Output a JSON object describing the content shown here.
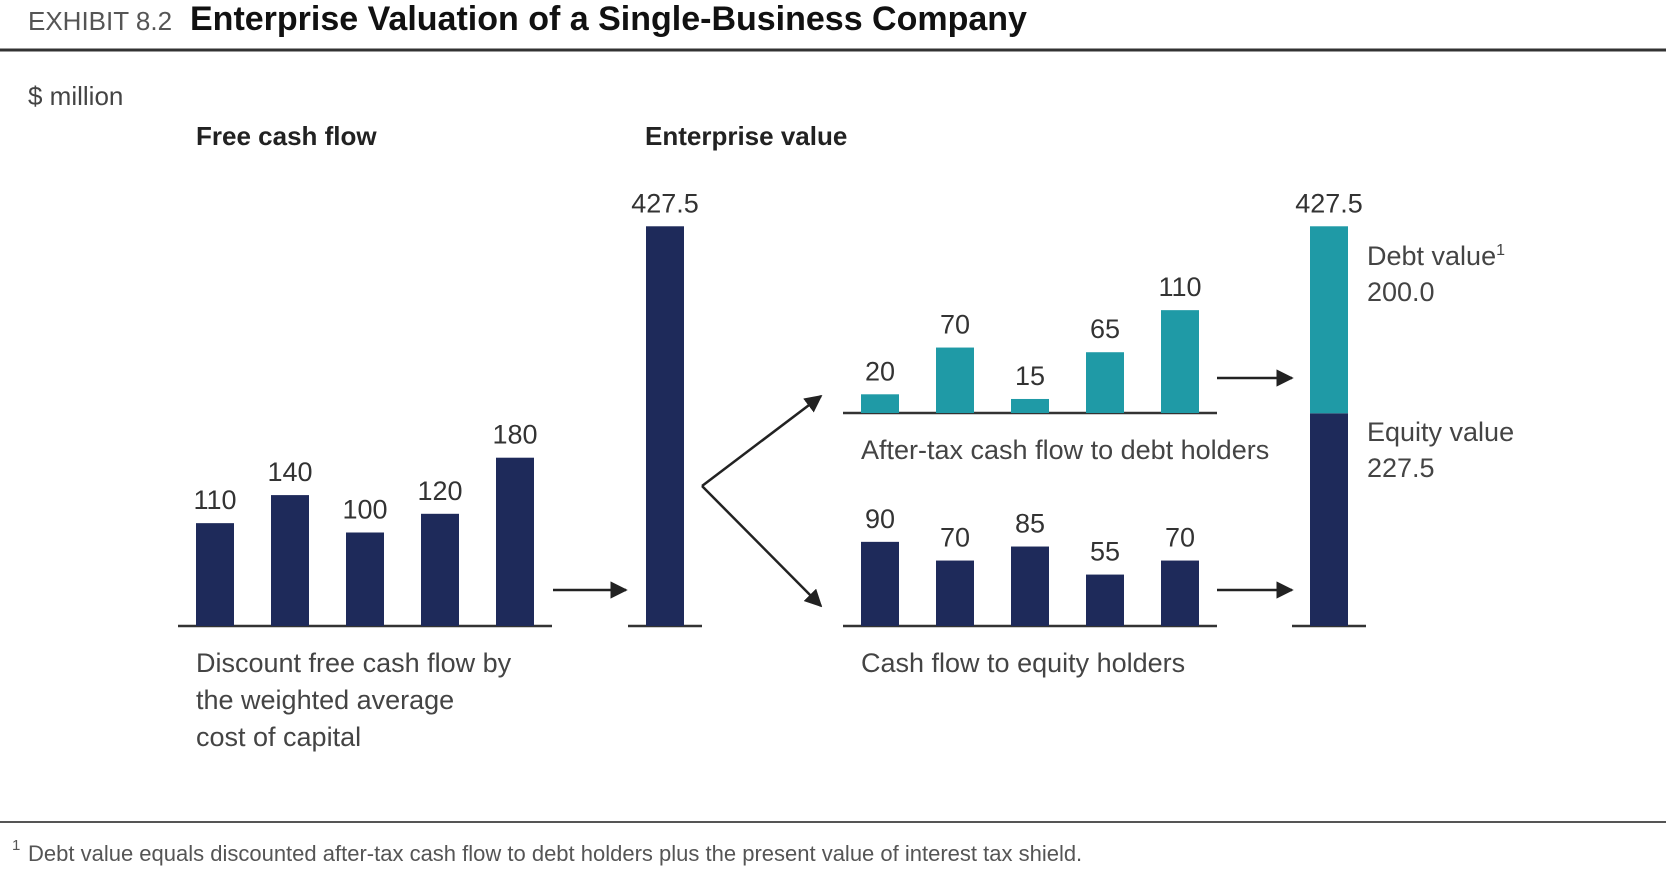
{
  "exhibit": {
    "label": "EXHIBIT 8.2",
    "title": "Enterprise Valuation of a Single-Business Company",
    "units": "$ million",
    "footnote_marker": "1",
    "footnote": "Debt value equals discounted after-tax cash flow to debt holders plus the present value of interest tax shield."
  },
  "colors": {
    "dark": "#1e2a5a",
    "teal": "#1f9aa6",
    "text": "#333333",
    "rule": "#333333"
  },
  "chart_data": [
    {
      "type": "bar",
      "title": "Free cash flow",
      "values": [
        110,
        140,
        100,
        120,
        180
      ],
      "value_labels": [
        "110",
        "140",
        "100",
        "120",
        "180"
      ],
      "caption": [
        "Discount free cash flow by",
        "the weighted average",
        "cost of capital"
      ],
      "color": "dark"
    },
    {
      "type": "bar",
      "title": "Enterprise value",
      "values": [
        427.5
      ],
      "value_labels": [
        "427.5"
      ],
      "color": "dark"
    },
    {
      "type": "bar",
      "values": [
        20,
        70,
        15,
        65,
        110
      ],
      "value_labels": [
        "20",
        "70",
        "15",
        "65",
        "110"
      ],
      "caption": [
        "After-tax cash flow to debt holders"
      ],
      "color": "teal"
    },
    {
      "type": "bar",
      "values": [
        90,
        70,
        85,
        55,
        70
      ],
      "value_labels": [
        "90",
        "70",
        "85",
        "55",
        "70"
      ],
      "caption": [
        "Cash flow to equity holders"
      ],
      "color": "dark"
    },
    {
      "type": "bar",
      "stacked": true,
      "total": 427.5,
      "total_label": "427.5",
      "series": [
        {
          "name": "Equity value",
          "value": 227.5,
          "value_label": "227.5",
          "color": "dark"
        },
        {
          "name": "Debt value",
          "superscript": "1",
          "value": 200.0,
          "value_label": "200.0",
          "color": "teal"
        }
      ]
    }
  ]
}
